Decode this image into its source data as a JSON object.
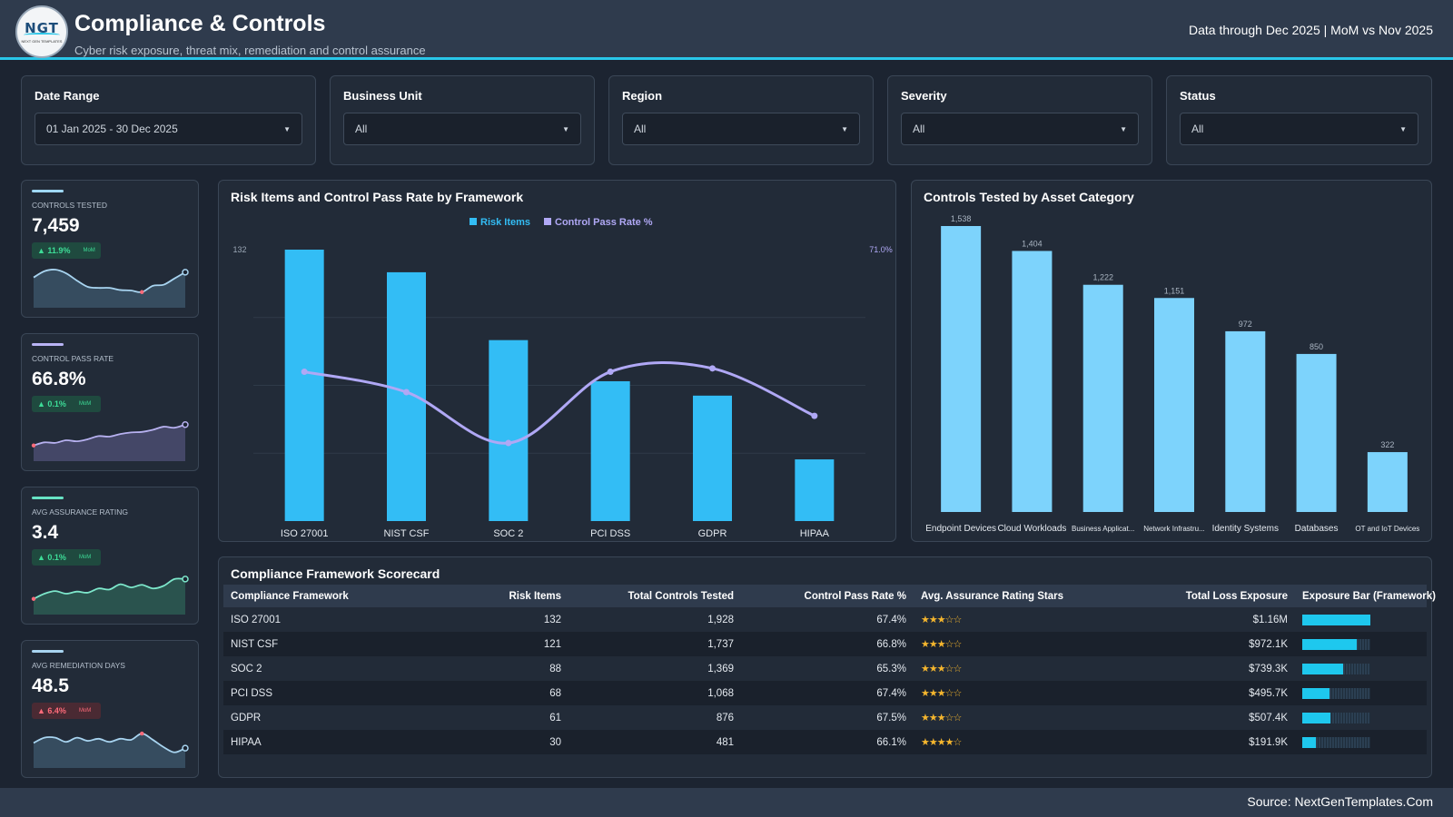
{
  "header": {
    "logo": "NGT",
    "logo_sub": "NEXT GEN TEMPLATES",
    "title": "Compliance & Controls",
    "subtitle": "Cyber risk exposure, threat mix, remediation and control assurance",
    "data_note": "Data through Dec 2025 | MoM vs Nov 2025"
  },
  "filters": [
    {
      "label": "Date Range",
      "value": "01 Jan 2025 - 30 Dec 2025"
    },
    {
      "label": "Business Unit",
      "value": "All"
    },
    {
      "label": "Region",
      "value": "All"
    },
    {
      "label": "Severity",
      "value": "All"
    },
    {
      "label": "Status",
      "value": "All"
    }
  ],
  "kpis": [
    {
      "label": "CONTROLS TESTED",
      "value": "7,459",
      "delta": "11.9%",
      "direction": "up",
      "mom": "MoM",
      "accent": "#9fd8f5",
      "line": "#a8d4f0",
      "fill": "#3a5266",
      "spark": [
        58,
        70,
        73,
        66,
        52,
        40,
        38,
        38,
        34,
        33,
        30,
        42,
        44,
        56,
        68
      ]
    },
    {
      "label": "CONTROL PASS RATE",
      "value": "66.8%",
      "delta": "0.1%",
      "direction": "up",
      "mom": "MoM",
      "accent": "#b9b4f5",
      "line": "#b7b1f0",
      "fill": "#4a4c70",
      "spark": [
        30,
        36,
        35,
        40,
        38,
        42,
        48,
        47,
        52,
        55,
        56,
        60,
        66,
        64,
        70
      ]
    },
    {
      "label": "AVG ASSURANCE RATING",
      "value": "3.4",
      "delta": "0.1%",
      "direction": "up",
      "mom": "MoM",
      "accent": "#67e3c4",
      "line": "#7de7cb",
      "fill": "#2b5a52",
      "spark": [
        30,
        40,
        45,
        40,
        44,
        42,
        50,
        48,
        58,
        52,
        57,
        50,
        55,
        68,
        68
      ]
    },
    {
      "label": "AVG REMEDIATION DAYS",
      "value": "48.5",
      "delta": "6.4%",
      "direction": "down",
      "mom": "MoM",
      "accent": "#a8d4f0",
      "line": "#a8d4f0",
      "fill": "#3a5266",
      "spark": [
        48,
        58,
        58,
        50,
        58,
        52,
        56,
        50,
        56,
        54,
        66,
        54,
        40,
        30,
        38
      ]
    }
  ],
  "risk_panel": {
    "title": "Risk Items and Control Pass Rate by Framework"
  },
  "asset_panel": {
    "title": "Controls Tested by Asset Category"
  },
  "scorecard": {
    "title": "Compliance Framework Scorecard",
    "columns": [
      "Compliance Framework",
      "Risk Items",
      "Total Controls Tested",
      "Control Pass Rate %",
      "Avg. Assurance Rating Stars",
      "Total Loss Exposure",
      "Exposure Bar (Framework)"
    ],
    "rows": [
      {
        "framework": "ISO 27001",
        "risk": "132",
        "controls": "1,928",
        "pass": "67.4%",
        "stars": "★★★☆☆",
        "exposure": "$1.16M",
        "exposure_share": 1.0
      },
      {
        "framework": "NIST CSF",
        "risk": "121",
        "controls": "1,737",
        "pass": "66.8%",
        "stars": "★★★☆☆",
        "exposure": "$972.1K",
        "exposure_share": 0.8
      },
      {
        "framework": "SOC 2",
        "risk": "88",
        "controls": "1,369",
        "pass": "65.3%",
        "stars": "★★★☆☆",
        "exposure": "$739.3K",
        "exposure_share": 0.6
      },
      {
        "framework": "PCI DSS",
        "risk": "68",
        "controls": "1,068",
        "pass": "67.4%",
        "stars": "★★★☆☆",
        "exposure": "$495.7K",
        "exposure_share": 0.4
      },
      {
        "framework": "GDPR",
        "risk": "61",
        "controls": "876",
        "pass": "67.5%",
        "stars": "★★★☆☆",
        "exposure": "$507.4K",
        "exposure_share": 0.41
      },
      {
        "framework": "HIPAA",
        "risk": "30",
        "controls": "481",
        "pass": "66.1%",
        "stars": "★★★★☆",
        "exposure": "$191.9K",
        "exposure_share": 0.2
      }
    ]
  },
  "footer": {
    "source": "Source: NextGenTemplates.Com"
  },
  "chart_data": [
    {
      "type": "bar",
      "title": "Risk Items and Control Pass Rate by Framework",
      "categories": [
        "ISO 27001",
        "NIST CSF",
        "SOC 2",
        "PCI DSS",
        "GDPR",
        "HIPAA"
      ],
      "series": [
        {
          "name": "Risk Items",
          "type": "bar",
          "values": [
            132,
            121,
            88,
            68,
            61,
            30
          ],
          "color": "#33bdf5"
        },
        {
          "name": "Control Pass Rate %",
          "type": "line",
          "values": [
            67.4,
            66.8,
            65.3,
            67.4,
            67.5,
            66.1
          ],
          "color": "#b0a8f5"
        }
      ],
      "y_axis_max_label": "132",
      "y2_axis_max_label": "71.0%",
      "ylim": [
        0,
        132
      ],
      "y2lim": [
        63,
        71
      ],
      "legend_position": "top-center",
      "grid": true
    },
    {
      "type": "bar",
      "title": "Controls Tested by Asset Category",
      "categories": [
        "Endpoint Devices",
        "Cloud Workloads",
        "Business Applicat...",
        "Network Infrastru...",
        "Identity Systems",
        "Databases",
        "OT and IoT Devices"
      ],
      "values": [
        1538,
        1404,
        1222,
        1151,
        972,
        850,
        322
      ],
      "value_labels": [
        "1,538",
        "1,404",
        "1,222",
        "1,151",
        "972",
        "850",
        "322"
      ],
      "color": "#7dd3fc",
      "ylim": [
        0,
        1538
      ],
      "grid": false
    }
  ]
}
